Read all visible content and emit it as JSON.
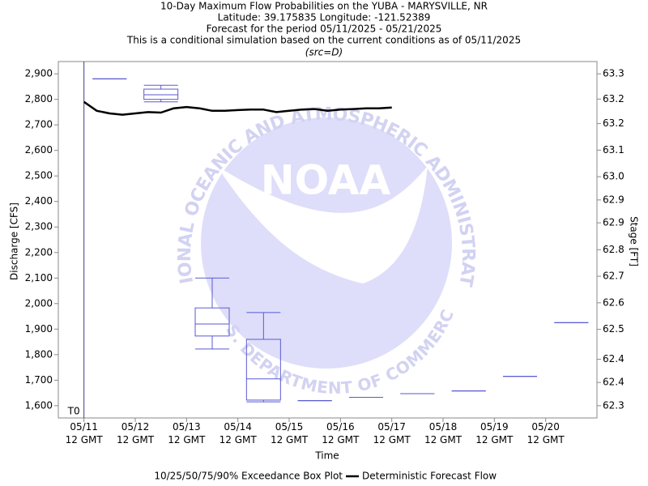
{
  "chart_data": {
    "type": "line",
    "title": "10-Day Maximum Flow Probabilities on the YUBA - MARYSVILLE, NR",
    "subtitles": [
      "Latitude: 39.175835 Longitude: -121.52389",
      "Forecast for the period 05/11/2025 - 05/21/2025",
      "This is a conditional simulation based on the current conditions as of 05/11/2025",
      "(src=D)"
    ],
    "x_label": "Time",
    "y_label": "Discharge [CFS]",
    "y2_label": "Stage [FT]",
    "xlim": [
      "2025-05-11T00:00Z",
      "2025-05-21T12:00Z"
    ],
    "xticks": [
      {
        "value": "2025-05-11T12:00Z",
        "label": "05/11\n12 GMT"
      },
      {
        "value": "2025-05-12T12:00Z",
        "label": "05/12\n12 GMT"
      },
      {
        "value": "2025-05-13T12:00Z",
        "label": "05/13\n12 GMT"
      },
      {
        "value": "2025-05-14T12:00Z",
        "label": "05/14\n12 GMT"
      },
      {
        "value": "2025-05-15T12:00Z",
        "label": "05/15\n12 GMT"
      },
      {
        "value": "2025-05-16T12:00Z",
        "label": "05/16\n12 GMT"
      },
      {
        "value": "2025-05-17T12:00Z",
        "label": "05/17\n12 GMT"
      },
      {
        "value": "2025-05-18T12:00Z",
        "label": "05/18\n12 GMT"
      },
      {
        "value": "2025-05-19T12:00Z",
        "label": "05/19\n12 GMT"
      },
      {
        "value": "2025-05-20T12:00Z",
        "label": "05/20\n12 GMT"
      }
    ],
    "ylim": [
      1552,
      2948
    ],
    "yticks": [
      {
        "value": 1600,
        "label": "1,600"
      },
      {
        "value": 1700,
        "label": "1,700"
      },
      {
        "value": 1800,
        "label": "1,800"
      },
      {
        "value": 1900,
        "label": "1,900"
      },
      {
        "value": 2000,
        "label": "2,000"
      },
      {
        "value": 2100,
        "label": "2,100"
      },
      {
        "value": 2200,
        "label": "2,200"
      },
      {
        "value": 2300,
        "label": "2,300"
      },
      {
        "value": 2400,
        "label": "2,400"
      },
      {
        "value": 2500,
        "label": "2,500"
      },
      {
        "value": 2600,
        "label": "2,600"
      },
      {
        "value": 2700,
        "label": "2,700"
      },
      {
        "value": 2800,
        "label": "2,800"
      },
      {
        "value": 2900,
        "label": "2,900"
      }
    ],
    "y2lim": [
      62.263,
      63.337
    ],
    "y2ticks": [
      {
        "value": 62.3,
        "label": "62.3"
      },
      {
        "value": 62.37,
        "label": "62.4"
      },
      {
        "value": 62.44,
        "label": "62.4"
      },
      {
        "value": 62.53,
        "label": "62.5"
      },
      {
        "value": 62.61,
        "label": "62.6"
      },
      {
        "value": 62.69,
        "label": "62.7"
      },
      {
        "value": 62.77,
        "label": "62.8"
      },
      {
        "value": 62.851,
        "label": "62.9"
      },
      {
        "value": 62.92,
        "label": "62.9"
      },
      {
        "value": 62.99,
        "label": "63.0"
      },
      {
        "value": 63.07,
        "label": "63.1"
      },
      {
        "value": 63.15,
        "label": "63.2"
      },
      {
        "value": 63.224,
        "label": "63.2"
      },
      {
        "value": 63.3,
        "label": "63.3"
      }
    ],
    "grid": false,
    "t0": {
      "label": "T0",
      "x": "2025-05-11T12:00Z",
      "color": "#3c3c8c"
    },
    "boxes": {
      "name": "10/25/50/75/90% Exceedance Box Plot",
      "color": "#5a5ad2",
      "x": [
        "2025-05-12T00:00Z",
        "2025-05-13T00:00Z",
        "2025-05-14T00:00Z",
        "2025-05-15T00:00Z",
        "2025-05-16T00:00Z",
        "2025-05-17T00:00Z",
        "2025-05-18T00:00Z",
        "2025-05-19T00:00Z",
        "2025-05-20T00:00Z",
        "2025-05-21T00:00Z"
      ],
      "p10": [
        2880,
        2790,
        1822,
        1615,
        1620,
        1633,
        1647,
        1658,
        1715,
        1925
      ],
      "p25": [
        2880,
        2800,
        1873,
        1622,
        1620,
        1633,
        1647,
        1658,
        1715,
        1925
      ],
      "p50": [
        2880,
        2818,
        1920,
        1705,
        1620,
        1633,
        1647,
        1658,
        1715,
        1925
      ],
      "p75": [
        2880,
        2840,
        1983,
        1860,
        1620,
        1633,
        1647,
        1658,
        1715,
        1925
      ],
      "p90": [
        2880,
        2855,
        2100,
        1965,
        1620,
        1633,
        1647,
        1658,
        1715,
        1925
      ]
    },
    "series": [
      {
        "name": "Deterministic Forecast Flow",
        "color": "#000000",
        "x": [
          "2025-05-11T12:00Z",
          "2025-05-11T18:00Z",
          "2025-05-12T00:00Z",
          "2025-05-12T06:00Z",
          "2025-05-12T12:00Z",
          "2025-05-12T18:00Z",
          "2025-05-13T00:00Z",
          "2025-05-13T06:00Z",
          "2025-05-13T12:00Z",
          "2025-05-13T18:00Z",
          "2025-05-14T00:00Z",
          "2025-05-14T06:00Z",
          "2025-05-14T12:00Z",
          "2025-05-14T18:00Z",
          "2025-05-15T00:00Z",
          "2025-05-15T06:00Z",
          "2025-05-15T12:00Z",
          "2025-05-15T18:00Z",
          "2025-05-16T00:00Z",
          "2025-05-16T06:00Z",
          "2025-05-16T12:00Z",
          "2025-05-16T18:00Z",
          "2025-05-17T00:00Z",
          "2025-05-17T06:00Z",
          "2025-05-17T12:00Z"
        ],
        "values": [
          2790,
          2755,
          2745,
          2740,
          2745,
          2750,
          2748,
          2765,
          2770,
          2765,
          2755,
          2755,
          2758,
          2760,
          2760,
          2750,
          2755,
          2760,
          2762,
          2755,
          2760,
          2762,
          2765,
          2765,
          2768
        ]
      }
    ],
    "watermark": {
      "name": "NOAA",
      "outer": "NATIONAL OCEANIC AND ATMOSPHERIC ADMINISTRATION",
      "inner": "U.S. DEPARTMENT OF COMMERCE"
    }
  }
}
